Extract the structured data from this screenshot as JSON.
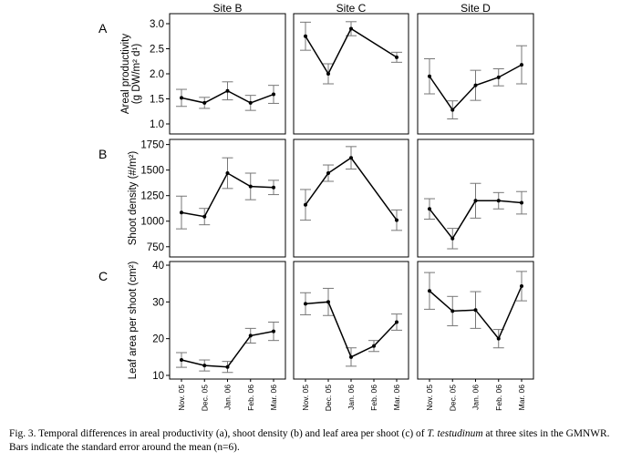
{
  "figure": {
    "sites": [
      "Site B",
      "Site C",
      "Site D"
    ],
    "row_labels": [
      "A",
      "B",
      "C"
    ],
    "x_categories": [
      "Nov. 05",
      "Dec. 05",
      "Jan. 06",
      "Feb. 06",
      "Mar. 06"
    ]
  },
  "chart_data": [
    {
      "type": "line",
      "row_label": "A",
      "ylabel": "Areal productivity (g DW/m² d¹)",
      "ylabel_lines": [
        "Areal productivity",
        "(g DW/m² d¹)"
      ],
      "yticks": [
        1.0,
        1.5,
        2.0,
        2.5,
        3.0
      ],
      "ytick_labels": [
        "1.0",
        "1.5",
        "2.0",
        "2.5",
        "3.0"
      ],
      "ylim": [
        0.8,
        3.2
      ],
      "categories": [
        "Nov. 05",
        "Dec. 05",
        "Jan. 06",
        "Feb. 06",
        "Mar. 06"
      ],
      "panels": [
        {
          "site": "Site B",
          "values": [
            1.52,
            1.42,
            1.66,
            1.42,
            1.59
          ],
          "errors": [
            0.17,
            0.11,
            0.18,
            0.15,
            0.18
          ]
        },
        {
          "site": "Site C",
          "values": [
            2.75,
            2.0,
            2.9,
            null,
            2.33
          ],
          "errors": [
            0.28,
            0.2,
            0.14,
            null,
            0.1
          ]
        },
        {
          "site": "Site D",
          "values": [
            1.95,
            1.28,
            1.77,
            1.93,
            2.18
          ],
          "errors": [
            0.35,
            0.18,
            0.3,
            0.17,
            0.38
          ]
        }
      ]
    },
    {
      "type": "line",
      "row_label": "B",
      "ylabel": "Shoot density (#/m²)",
      "ylabel_lines": [
        "Shoot density (#/m²)"
      ],
      "yticks": [
        750,
        1000,
        1250,
        1500,
        1750
      ],
      "ytick_labels": [
        "750",
        "1000",
        "1250",
        "1500",
        "1750"
      ],
      "ylim": [
        650,
        1800
      ],
      "categories": [
        "Nov. 05",
        "Dec. 05",
        "Jan. 06",
        "Feb. 06",
        "Mar. 06"
      ],
      "panels": [
        {
          "site": "Site B",
          "values": [
            1085,
            1045,
            1470,
            1340,
            1330
          ],
          "errors": [
            160,
            80,
            150,
            130,
            70
          ]
        },
        {
          "site": "Site C",
          "values": [
            1160,
            1470,
            1620,
            null,
            1010
          ],
          "errors": [
            150,
            80,
            110,
            null,
            100
          ]
        },
        {
          "site": "Site D",
          "values": [
            1120,
            830,
            1200,
            1200,
            1180
          ],
          "errors": [
            100,
            100,
            170,
            80,
            110
          ]
        }
      ]
    },
    {
      "type": "line",
      "row_label": "C",
      "ylabel": "Leaf area per shoot (cm²)",
      "ylabel_lines": [
        "Leaf area per shoot (cm²)"
      ],
      "yticks": [
        10,
        20,
        30,
        40
      ],
      "ytick_labels": [
        "10",
        "20",
        "30",
        "40"
      ],
      "ylim": [
        9,
        41
      ],
      "categories": [
        "Nov. 05",
        "Dec. 05",
        "Jan. 06",
        "Feb. 06",
        "Mar. 06"
      ],
      "panels": [
        {
          "site": "Site B",
          "values": [
            14.2,
            12.7,
            12.3,
            20.8,
            22
          ],
          "errors": [
            2,
            1.5,
            1.5,
            2,
            2.5
          ]
        },
        {
          "site": "Site C",
          "values": [
            29.5,
            30,
            15,
            18,
            24.5
          ],
          "errors": [
            3,
            3.7,
            2.5,
            1.5,
            2.2
          ]
        },
        {
          "site": "Site D",
          "values": [
            33,
            27.5,
            27.8,
            20,
            34.3
          ],
          "errors": [
            5,
            4,
            5,
            2.5,
            4
          ]
        }
      ]
    }
  ],
  "caption": {
    "lead": "Fig. 3. Temporal differences in areal productivity (a), shoot density (b) and leaf area per shoot (c) of ",
    "species": "T. testudinum",
    "tail": " at three sites in the GMNWR. Bars indicate the standard error around the mean (n=6)."
  }
}
